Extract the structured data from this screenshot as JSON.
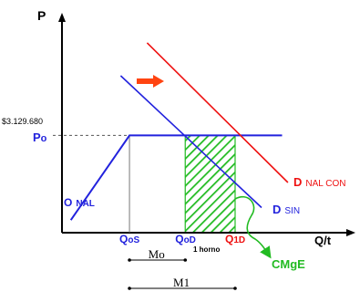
{
  "chart_data": {
    "type": "line",
    "title": "",
    "axes": {
      "y_label": "P",
      "x_label": "Q/t",
      "x_range": [
        0,
        100
      ],
      "y_range": [
        0,
        100
      ],
      "grid": false
    },
    "price": {
      "value_text": "$3.129.680",
      "label_main": "P",
      "label_sub": "o",
      "level": 62
    },
    "series": [
      {
        "name_main": "O",
        "name_sub": "NAL",
        "color": "#2222dd",
        "kind": "supply",
        "points": [
          [
            3,
            8
          ],
          [
            23,
            62
          ],
          [
            75,
            62
          ]
        ]
      },
      {
        "name_main": "D",
        "name_sub": "SIN",
        "color": "#2222dd",
        "kind": "demand",
        "points": [
          [
            20,
            100
          ],
          [
            68,
            16
          ]
        ]
      },
      {
        "name_main": "D",
        "name_sub": "NAL CON",
        "color": "#ee1111",
        "kind": "demand",
        "points": [
          [
            29,
            121
          ],
          [
            77,
            32
          ]
        ]
      }
    ],
    "quantities": [
      {
        "main": "Q",
        "sub": "oS",
        "x": 23,
        "color": "#2222dd"
      },
      {
        "main": "Q",
        "sub": "oD",
        "x": 42,
        "color": "#2222dd"
      },
      {
        "main": "Q",
        "sub": "1D",
        "x": 59,
        "color": "#ee1111"
      }
    ],
    "hatched_region": {
      "x_from": 42,
      "x_to": 59,
      "y_from": 0,
      "y_to": 62,
      "color": "#22bb22"
    },
    "annotations": {
      "horno": "1 horno",
      "cmge": "CMgE",
      "shift_arrow_color": "#ff4411"
    },
    "brackets": [
      {
        "label": "Mo",
        "x_from": 23,
        "x_to": 42
      },
      {
        "label": "M1",
        "x_from": 23,
        "x_to": 59
      }
    ]
  }
}
